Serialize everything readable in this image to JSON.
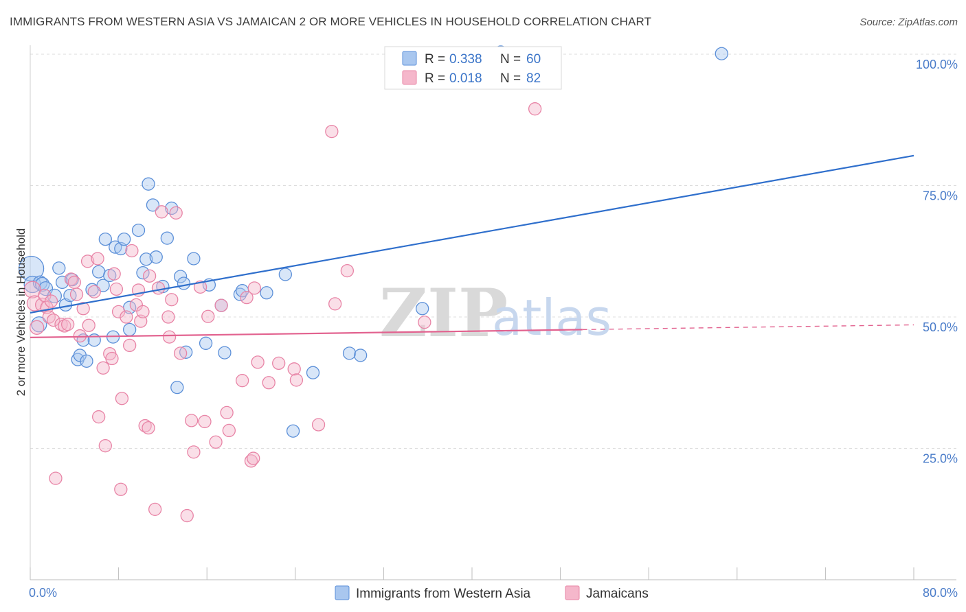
{
  "title": "IMMIGRANTS FROM WESTERN ASIA VS JAMAICAN 2 OR MORE VEHICLES IN HOUSEHOLD CORRELATION CHART",
  "source": "Source: ZipAtlas.com",
  "watermark": {
    "zip": "ZIP",
    "atlas": "atlas"
  },
  "colors": {
    "blue_fill": "#a9c7ef",
    "blue_stroke": "#5b8fd8",
    "blue_line": "#2f6fcc",
    "pink_fill": "#f5b7cb",
    "pink_stroke": "#e884a6",
    "pink_line": "#e2628f",
    "grid": "#dcdcdc",
    "tick_text": "#4a7cc9"
  },
  "legend": {
    "r_label": "R =",
    "n_label": "N =",
    "series": [
      {
        "r": "0.338",
        "n": "60"
      },
      {
        "r": "0.018",
        "n": "82"
      }
    ]
  },
  "bottom_legend": [
    "Immigrants from Western Asia",
    "Jamaicans"
  ],
  "chart_data": {
    "type": "scatter",
    "title": "IMMIGRANTS FROM WESTERN ASIA VS JAMAICAN 2 OR MORE VEHICLES IN HOUSEHOLD CORRELATION CHART",
    "xlabel": "",
    "ylabel": "2 or more Vehicles in Household",
    "xlim": [
      0,
      80
    ],
    "ylim": [
      0,
      104
    ],
    "x_tick_labels": [
      {
        "value": 0,
        "label": "0.0%"
      },
      {
        "value": 80,
        "label": "80.0%"
      }
    ],
    "y_tick_labels": [
      {
        "value": 25,
        "label": "25.0%"
      },
      {
        "value": 50,
        "label": "50.0%"
      },
      {
        "value": 75,
        "label": "75.0%"
      },
      {
        "value": 100,
        "label": "100.0%"
      }
    ],
    "grid": true,
    "series": [
      {
        "name": "Immigrants from Western Asia",
        "color": "#5b8fd8",
        "R": 0.338,
        "N": 60,
        "trend": {
          "x": [
            0,
            80
          ],
          "y": [
            50.8,
            80.7
          ]
        },
        "points": [
          [
            0.1,
            59.2,
            18
          ],
          [
            0.2,
            56.2,
            12
          ],
          [
            0.8,
            48.6,
            11
          ],
          [
            0.9,
            56.5,
            10
          ],
          [
            1.1,
            56.2,
            10
          ],
          [
            1.4,
            55.4,
            10
          ],
          [
            2.2,
            54.0,
            10
          ],
          [
            2.6,
            59.3,
            9
          ],
          [
            2.9,
            56.6,
            9
          ],
          [
            3.2,
            52.3,
            9
          ],
          [
            3.6,
            54.1,
            9
          ],
          [
            3.8,
            57.1,
            9
          ],
          [
            4.3,
            41.9,
            9
          ],
          [
            4.5,
            42.7,
            9
          ],
          [
            4.8,
            45.6,
            9
          ],
          [
            5.1,
            41.6,
            9
          ],
          [
            5.6,
            55.2,
            9
          ],
          [
            5.8,
            45.6,
            9
          ],
          [
            6.2,
            58.6,
            9
          ],
          [
            6.6,
            56.0,
            9
          ],
          [
            6.8,
            64.8,
            9
          ],
          [
            7.2,
            57.9,
            9
          ],
          [
            7.5,
            46.2,
            9
          ],
          [
            7.7,
            63.3,
            9
          ],
          [
            8.2,
            63.0,
            9
          ],
          [
            8.5,
            64.8,
            9
          ],
          [
            9.0,
            51.8,
            9
          ],
          [
            9.0,
            47.6,
            9
          ],
          [
            9.8,
            66.5,
            9
          ],
          [
            10.2,
            58.4,
            9
          ],
          [
            10.5,
            61.0,
            9
          ],
          [
            10.7,
            75.3,
            9
          ],
          [
            11.1,
            71.3,
            9
          ],
          [
            11.4,
            61.4,
            9
          ],
          [
            12.0,
            55.8,
            9
          ],
          [
            12.4,
            65.0,
            9
          ],
          [
            12.8,
            70.7,
            9
          ],
          [
            13.3,
            36.6,
            9
          ],
          [
            13.6,
            57.7,
            9
          ],
          [
            13.9,
            56.4,
            9
          ],
          [
            14.1,
            43.3,
            9
          ],
          [
            14.8,
            61.1,
            9
          ],
          [
            15.9,
            45.0,
            9
          ],
          [
            16.2,
            56.1,
            9
          ],
          [
            17.3,
            52.2,
            9
          ],
          [
            17.6,
            43.2,
            9
          ],
          [
            19.0,
            54.3,
            9
          ],
          [
            19.2,
            55.0,
            9
          ],
          [
            21.4,
            54.6,
            9
          ],
          [
            23.1,
            58.1,
            9
          ],
          [
            23.8,
            28.3,
            9
          ],
          [
            25.6,
            39.4,
            9
          ],
          [
            28.9,
            43.1,
            9
          ],
          [
            29.9,
            42.7,
            9
          ],
          [
            35.5,
            51.6,
            9
          ],
          [
            42.6,
            100.4,
            9
          ],
          [
            62.6,
            100.1,
            9
          ]
        ]
      },
      {
        "name": "Jamaicans",
        "color": "#e884a6",
        "R": 0.018,
        "N": 82,
        "trend": {
          "x": [
            0,
            50
          ],
          "y": [
            46.1,
            47.6
          ],
          "dashed_to": {
            "x": 80,
            "y": 48.5
          }
        },
        "points": [
          [
            0.2,
            55.2,
            12
          ],
          [
            0.4,
            52.6,
            11
          ],
          [
            0.6,
            48.0,
            10
          ],
          [
            1.1,
            52.3,
            10
          ],
          [
            1.3,
            54.1,
            9
          ],
          [
            1.5,
            51.8,
            9
          ],
          [
            1.7,
            50.0,
            9
          ],
          [
            1.9,
            53.0,
            9
          ],
          [
            2.1,
            49.4,
            9
          ],
          [
            2.3,
            19.3,
            9
          ],
          [
            2.8,
            48.6,
            9
          ],
          [
            3.1,
            48.3,
            9
          ],
          [
            3.4,
            48.6,
            9
          ],
          [
            3.7,
            57.2,
            9
          ],
          [
            4.0,
            56.6,
            9
          ],
          [
            4.2,
            54.3,
            9
          ],
          [
            4.5,
            46.4,
            9
          ],
          [
            4.8,
            51.6,
            9
          ],
          [
            5.2,
            60.6,
            9
          ],
          [
            5.3,
            48.4,
            9
          ],
          [
            5.8,
            54.8,
            9
          ],
          [
            6.1,
            61.1,
            9
          ],
          [
            6.2,
            31.0,
            9
          ],
          [
            6.6,
            40.3,
            9
          ],
          [
            6.8,
            25.5,
            9
          ],
          [
            7.2,
            43.0,
            9
          ],
          [
            7.4,
            42.1,
            9
          ],
          [
            7.6,
            58.2,
            9
          ],
          [
            7.8,
            55.3,
            9
          ],
          [
            8.0,
            51.0,
            9
          ],
          [
            8.2,
            17.2,
            9
          ],
          [
            8.3,
            34.5,
            9
          ],
          [
            8.7,
            50.0,
            9
          ],
          [
            9.0,
            44.6,
            9
          ],
          [
            9.2,
            62.6,
            9
          ],
          [
            9.6,
            52.3,
            9
          ],
          [
            9.8,
            55.1,
            9
          ],
          [
            10.0,
            49.2,
            9
          ],
          [
            10.2,
            51.0,
            9
          ],
          [
            10.4,
            29.3,
            9
          ],
          [
            10.7,
            28.9,
            9
          ],
          [
            10.8,
            57.8,
            9
          ],
          [
            11.3,
            13.4,
            9
          ],
          [
            11.6,
            55.5,
            9
          ],
          [
            11.9,
            70.0,
            9
          ],
          [
            12.5,
            50.0,
            9
          ],
          [
            12.6,
            46.2,
            9
          ],
          [
            12.8,
            53.3,
            9
          ],
          [
            13.2,
            69.8,
            9
          ],
          [
            13.6,
            43.1,
            9
          ],
          [
            14.2,
            12.2,
            9
          ],
          [
            14.6,
            30.3,
            9
          ],
          [
            14.8,
            24.3,
            9
          ],
          [
            15.4,
            55.7,
            9
          ],
          [
            15.8,
            30.1,
            9
          ],
          [
            16.1,
            50.1,
            9
          ],
          [
            16.8,
            26.2,
            9
          ],
          [
            17.3,
            52.2,
            9
          ],
          [
            17.8,
            31.8,
            9
          ],
          [
            18.0,
            28.4,
            9
          ],
          [
            19.2,
            37.9,
            9
          ],
          [
            19.6,
            53.7,
            9
          ],
          [
            20.0,
            22.6,
            9
          ],
          [
            20.2,
            23.1,
            9
          ],
          [
            20.3,
            55.5,
            9
          ],
          [
            20.6,
            41.4,
            9
          ],
          [
            21.6,
            37.5,
            9
          ],
          [
            22.5,
            41.2,
            9
          ],
          [
            23.9,
            40.1,
            9
          ],
          [
            24.1,
            38.0,
            9
          ],
          [
            26.1,
            29.5,
            9
          ],
          [
            27.3,
            85.3,
            9
          ],
          [
            27.6,
            52.5,
            9
          ],
          [
            28.7,
            58.8,
            9
          ],
          [
            35.7,
            49.0,
            9
          ],
          [
            45.7,
            89.6,
            9
          ]
        ]
      }
    ]
  }
}
